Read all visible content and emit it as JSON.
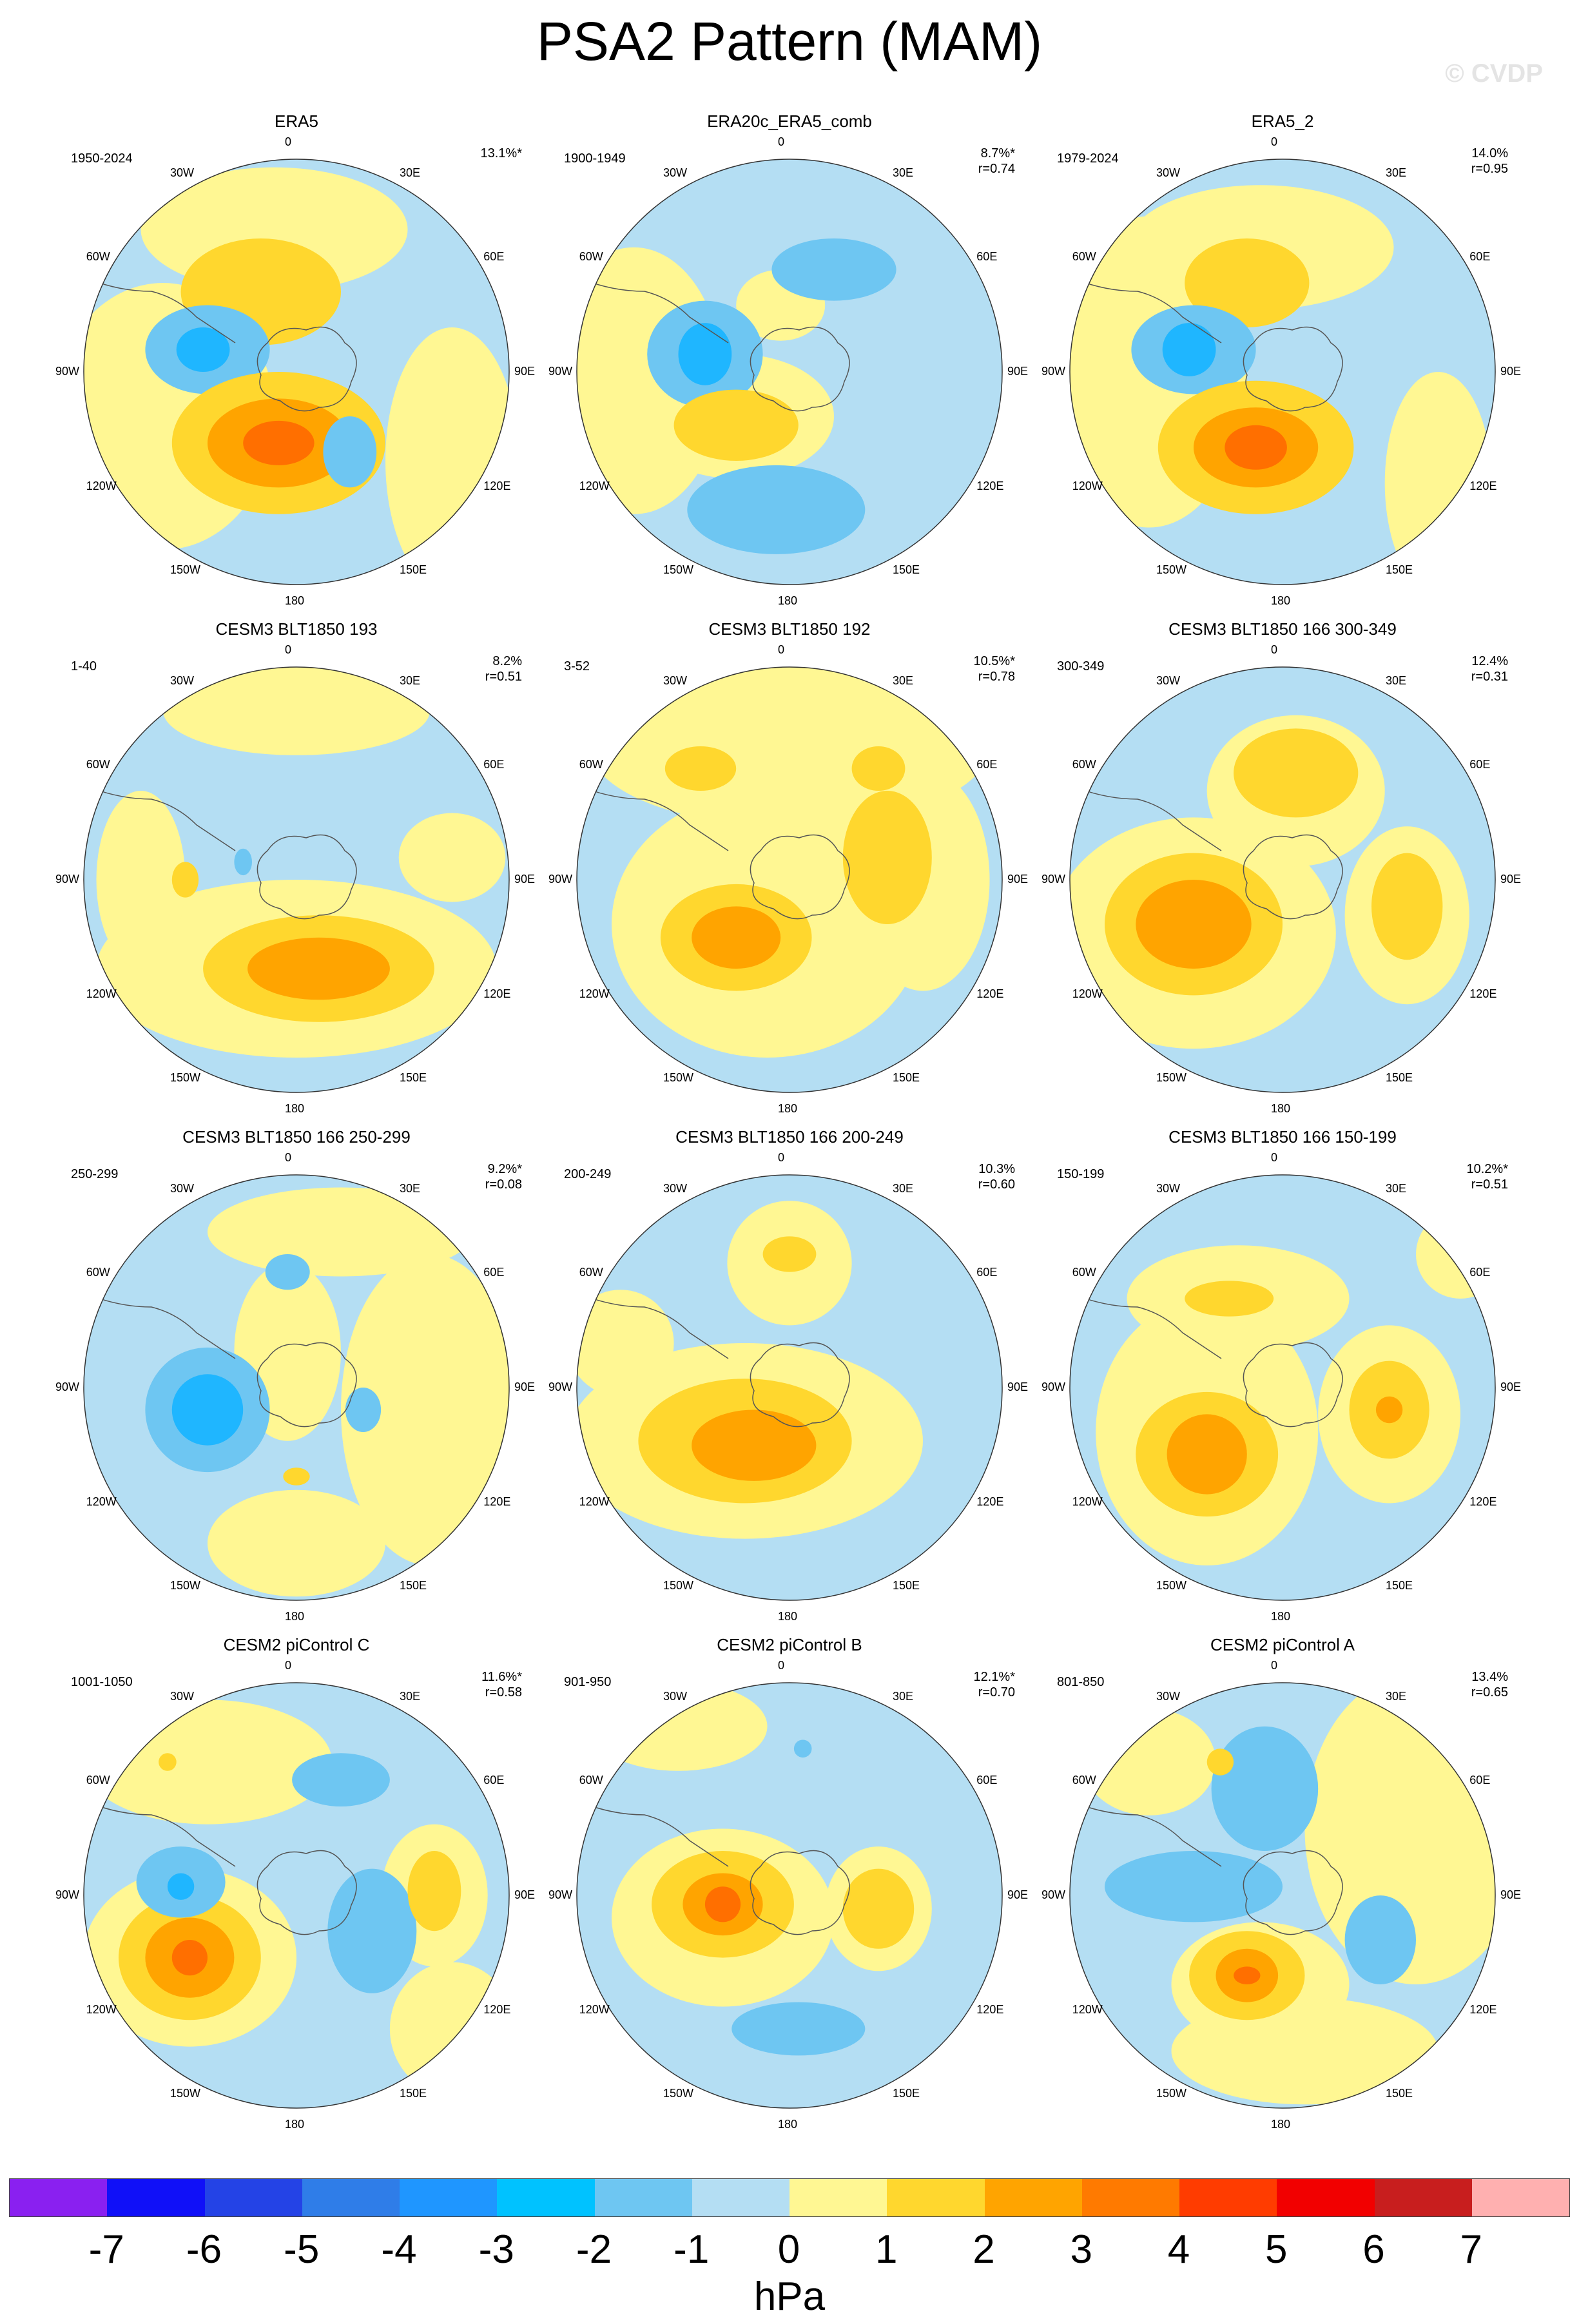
{
  "title": "PSA2 Pattern (MAM)",
  "watermark": "© CVDP",
  "lon_labels": {
    "n": "0",
    "ne1": "30E",
    "ne2": "60E",
    "e": "90E",
    "se1": "120E",
    "se2": "150E",
    "s": "180",
    "sw2": "150W",
    "sw1": "120W",
    "w": "90W",
    "nw2": "60W",
    "nw1": "30W"
  },
  "panels": [
    {
      "title": "ERA5",
      "period": "1950-2024",
      "pct": "13.1%*",
      "r": "",
      "blobs": [
        [
          "#ffd72e",
          0.42,
          0.32,
          0.18,
          0.12
        ],
        [
          "#6ec6f2",
          0.3,
          0.45,
          0.14,
          0.1
        ],
        [
          "#1fb6ff",
          0.29,
          0.45,
          0.06,
          0.05
        ],
        [
          "#ffd72e",
          0.46,
          0.66,
          0.24,
          0.16
        ],
        [
          "#ffa400",
          0.46,
          0.66,
          0.16,
          0.1
        ],
        [
          "#ff6f00",
          0.46,
          0.66,
          0.08,
          0.05
        ],
        [
          "#6ec6f2",
          0.62,
          0.68,
          0.06,
          0.08
        ]
      ],
      "bg": [
        [
          "#fff793",
          0.2,
          0.6,
          0.25,
          0.3
        ],
        [
          "#fff793",
          0.85,
          0.7,
          0.15,
          0.3
        ],
        [
          "#fff793",
          0.45,
          0.18,
          0.3,
          0.14
        ]
      ]
    },
    {
      "title": "ERA20c_ERA5_comb",
      "period": "1900-1949",
      "pct": "8.7%*",
      "r": "r=0.74",
      "blobs": [
        [
          "#6ec6f2",
          0.6,
          0.27,
          0.14,
          0.07
        ],
        [
          "#6ec6f2",
          0.31,
          0.46,
          0.13,
          0.12
        ],
        [
          "#1fb6ff",
          0.31,
          0.46,
          0.06,
          0.07
        ],
        [
          "#ffd72e",
          0.38,
          0.62,
          0.14,
          0.08
        ],
        [
          "#6ec6f2",
          0.47,
          0.81,
          0.2,
          0.1
        ]
      ],
      "bg": [
        [
          "#fff793",
          0.15,
          0.52,
          0.2,
          0.3
        ],
        [
          "#fff793",
          0.38,
          0.6,
          0.22,
          0.14
        ],
        [
          "#fff793",
          0.48,
          0.35,
          0.1,
          0.08
        ]
      ]
    },
    {
      "title": "ERA5_2",
      "period": "1979-2024",
      "pct": "14.0%",
      "r": "r=0.95",
      "blobs": [
        [
          "#ffd72e",
          0.42,
          0.3,
          0.14,
          0.1
        ],
        [
          "#6ec6f2",
          0.3,
          0.45,
          0.14,
          0.1
        ],
        [
          "#1fb6ff",
          0.29,
          0.45,
          0.06,
          0.06
        ],
        [
          "#ffd72e",
          0.44,
          0.67,
          0.22,
          0.15
        ],
        [
          "#ffa400",
          0.44,
          0.67,
          0.14,
          0.09
        ],
        [
          "#ff6f00",
          0.44,
          0.67,
          0.07,
          0.05
        ]
      ],
      "bg": [
        [
          "#fff793",
          0.2,
          0.5,
          0.22,
          0.35
        ],
        [
          "#fff793",
          0.45,
          0.22,
          0.3,
          0.14
        ],
        [
          "#fff793",
          0.85,
          0.75,
          0.12,
          0.25
        ]
      ]
    },
    {
      "title": "CESM3 BLT1850 193",
      "period": "1-40",
      "pct": "8.2%",
      "r": "r=0.51",
      "blobs": [
        [
          "#ffd72e",
          0.55,
          0.7,
          0.26,
          0.12
        ],
        [
          "#ffa400",
          0.55,
          0.7,
          0.16,
          0.07
        ],
        [
          "#ffd72e",
          0.25,
          0.5,
          0.03,
          0.04
        ],
        [
          "#6ec6f2",
          0.38,
          0.46,
          0.02,
          0.03
        ]
      ],
      "bg": [
        [
          "#fff793",
          0.5,
          0.7,
          0.45,
          0.2
        ],
        [
          "#fff793",
          0.5,
          0.12,
          0.3,
          0.1
        ],
        [
          "#fff793",
          0.15,
          0.5,
          0.1,
          0.2
        ],
        [
          "#fff793",
          0.85,
          0.45,
          0.12,
          0.1
        ]
      ]
    },
    {
      "title": "CESM3 BLT1850 192",
      "period": "3-52",
      "pct": "10.5%*",
      "r": "r=0.78",
      "blobs": [
        [
          "#ffd72e",
          0.38,
          0.63,
          0.17,
          0.12
        ],
        [
          "#ffa400",
          0.38,
          0.63,
          0.1,
          0.07
        ],
        [
          "#ffd72e",
          0.72,
          0.45,
          0.1,
          0.15
        ],
        [
          "#ffd72e",
          0.3,
          0.25,
          0.08,
          0.05
        ],
        [
          "#ffd72e",
          0.7,
          0.25,
          0.06,
          0.05
        ]
      ],
      "bg": [
        [
          "#fff793",
          0.45,
          0.6,
          0.35,
          0.3
        ],
        [
          "#fff793",
          0.5,
          0.2,
          0.45,
          0.18
        ],
        [
          "#fff793",
          0.8,
          0.5,
          0.15,
          0.25
        ]
      ]
    },
    {
      "title": "CESM3 BLT1850 166 300-349",
      "period": "300-349",
      "pct": "12.4%",
      "r": "r=0.31",
      "blobs": [
        [
          "#ffd72e",
          0.3,
          0.6,
          0.2,
          0.16
        ],
        [
          "#ffa400",
          0.3,
          0.6,
          0.13,
          0.1
        ],
        [
          "#ffd72e",
          0.53,
          0.26,
          0.14,
          0.1
        ],
        [
          "#ffd72e",
          0.78,
          0.56,
          0.08,
          0.12
        ]
      ],
      "bg": [
        [
          "#fff793",
          0.3,
          0.62,
          0.32,
          0.26
        ],
        [
          "#fff793",
          0.53,
          0.3,
          0.2,
          0.17
        ],
        [
          "#fff793",
          0.78,
          0.58,
          0.14,
          0.2
        ]
      ]
    },
    {
      "title": "CESM3 BLT1850 166 250-299",
      "period": "250-299",
      "pct": "9.2%*",
      "r": "r=0.08",
      "blobs": [
        [
          "#6ec6f2",
          0.3,
          0.55,
          0.14,
          0.14
        ],
        [
          "#1fb6ff",
          0.3,
          0.55,
          0.08,
          0.08
        ],
        [
          "#6ec6f2",
          0.48,
          0.24,
          0.05,
          0.04
        ],
        [
          "#6ec6f2",
          0.65,
          0.55,
          0.04,
          0.05
        ],
        [
          "#ffd72e",
          0.5,
          0.7,
          0.03,
          0.02
        ]
      ],
      "bg": [
        [
          "#fff793",
          0.8,
          0.55,
          0.2,
          0.35
        ],
        [
          "#fff793",
          0.48,
          0.42,
          0.12,
          0.2
        ],
        [
          "#fff793",
          0.6,
          0.15,
          0.3,
          0.1
        ],
        [
          "#fff793",
          0.5,
          0.85,
          0.2,
          0.12
        ]
      ]
    },
    {
      "title": "CESM3 BLT1850 166 200-249",
      "period": "200-249",
      "pct": "10.3%",
      "r": "r=0.60",
      "blobs": [
        [
          "#ffd72e",
          0.4,
          0.62,
          0.24,
          0.14
        ],
        [
          "#ffa400",
          0.42,
          0.63,
          0.14,
          0.08
        ],
        [
          "#ffd72e",
          0.5,
          0.2,
          0.06,
          0.04
        ]
      ],
      "bg": [
        [
          "#fff793",
          0.4,
          0.62,
          0.4,
          0.22
        ],
        [
          "#fff793",
          0.5,
          0.22,
          0.14,
          0.14
        ],
        [
          "#fff793",
          0.12,
          0.4,
          0.12,
          0.12
        ]
      ]
    },
    {
      "title": "CESM3 BLT1850 166 150-199",
      "period": "150-199",
      "pct": "10.2%*",
      "r": "r=0.51",
      "blobs": [
        [
          "#ffd72e",
          0.33,
          0.65,
          0.16,
          0.14
        ],
        [
          "#ffa400",
          0.33,
          0.65,
          0.09,
          0.09
        ],
        [
          "#ffd72e",
          0.74,
          0.55,
          0.09,
          0.11
        ],
        [
          "#ffa400",
          0.74,
          0.55,
          0.03,
          0.03
        ],
        [
          "#ffd72e",
          0.38,
          0.3,
          0.1,
          0.04
        ]
      ],
      "bg": [
        [
          "#fff793",
          0.33,
          0.6,
          0.25,
          0.3
        ],
        [
          "#fff793",
          0.74,
          0.56,
          0.16,
          0.2
        ],
        [
          "#fff793",
          0.4,
          0.3,
          0.25,
          0.12
        ],
        [
          "#fff793",
          0.9,
          0.2,
          0.1,
          0.1
        ]
      ]
    },
    {
      "title": "CESM2 piControl C",
      "period": "1001-1050",
      "pct": "11.6%*",
      "r": "r=0.58",
      "blobs": [
        [
          "#ffd72e",
          0.26,
          0.64,
          0.16,
          0.14
        ],
        [
          "#ffa400",
          0.26,
          0.64,
          0.1,
          0.09
        ],
        [
          "#ff6f00",
          0.26,
          0.64,
          0.04,
          0.04
        ],
        [
          "#6ec6f2",
          0.24,
          0.47,
          0.1,
          0.08
        ],
        [
          "#1fb6ff",
          0.24,
          0.48,
          0.03,
          0.03
        ],
        [
          "#6ec6f2",
          0.6,
          0.24,
          0.11,
          0.06
        ],
        [
          "#6ec6f2",
          0.67,
          0.58,
          0.1,
          0.14
        ],
        [
          "#ffd72e",
          0.81,
          0.49,
          0.06,
          0.09
        ],
        [
          "#ffd72e",
          0.21,
          0.2,
          0.02,
          0.02
        ]
      ],
      "bg": [
        [
          "#fff793",
          0.26,
          0.64,
          0.24,
          0.2
        ],
        [
          "#fff793",
          0.81,
          0.5,
          0.12,
          0.16
        ],
        [
          "#fff793",
          0.3,
          0.2,
          0.28,
          0.14
        ],
        [
          "#fff793",
          0.85,
          0.8,
          0.14,
          0.15
        ]
      ]
    },
    {
      "title": "CESM2 piControl B",
      "period": "901-950",
      "pct": "12.1%*",
      "r": "r=0.70",
      "blobs": [
        [
          "#ffd72e",
          0.35,
          0.52,
          0.16,
          0.12
        ],
        [
          "#ffa400",
          0.35,
          0.52,
          0.09,
          0.07
        ],
        [
          "#ff6f00",
          0.35,
          0.52,
          0.04,
          0.04
        ],
        [
          "#ffd72e",
          0.7,
          0.53,
          0.08,
          0.09
        ],
        [
          "#6ec6f2",
          0.52,
          0.8,
          0.15,
          0.06
        ],
        [
          "#6ec6f2",
          0.53,
          0.17,
          0.02,
          0.02
        ]
      ],
      "bg": [
        [
          "#fff793",
          0.35,
          0.55,
          0.25,
          0.2
        ],
        [
          "#fff793",
          0.7,
          0.53,
          0.12,
          0.14
        ],
        [
          "#fff793",
          0.25,
          0.12,
          0.2,
          0.1
        ]
      ]
    },
    {
      "title": "CESM2 piControl A",
      "period": "801-850",
      "pct": "13.4%",
      "r": "r=0.65",
      "blobs": [
        [
          "#ffd72e",
          0.42,
          0.68,
          0.13,
          0.1
        ],
        [
          "#ffa400",
          0.42,
          0.68,
          0.07,
          0.06
        ],
        [
          "#ff6f00",
          0.42,
          0.68,
          0.03,
          0.02
        ],
        [
          "#6ec6f2",
          0.46,
          0.26,
          0.12,
          0.14
        ],
        [
          "#6ec6f2",
          0.3,
          0.48,
          0.2,
          0.08
        ],
        [
          "#6ec6f2",
          0.72,
          0.6,
          0.08,
          0.1
        ],
        [
          "#ffd72e",
          0.36,
          0.2,
          0.03,
          0.03
        ]
      ],
      "bg": [
        [
          "#fff793",
          0.45,
          0.7,
          0.2,
          0.14
        ],
        [
          "#fff793",
          0.8,
          0.35,
          0.25,
          0.35
        ],
        [
          "#fff793",
          0.2,
          0.2,
          0.15,
          0.12
        ],
        [
          "#fff793",
          0.55,
          0.85,
          0.3,
          0.12
        ]
      ]
    }
  ],
  "colorbar": {
    "colors": [
      "#8a20f0",
      "#1010f8",
      "#2443e6",
      "#2f7de8",
      "#1f96ff",
      "#00c2ff",
      "#6ec6f2",
      "#b4def3",
      "#fff793",
      "#ffd72e",
      "#ffa400",
      "#ff7a00",
      "#ff3c00",
      "#f20000",
      "#c81e1e",
      "#ffb0b0"
    ],
    "ticks": [
      "-7",
      "-6",
      "-5",
      "-4",
      "-3",
      "-2",
      "-1",
      "0",
      "1",
      "2",
      "3",
      "4",
      "5",
      "6",
      "7"
    ],
    "unit": "hPa"
  }
}
